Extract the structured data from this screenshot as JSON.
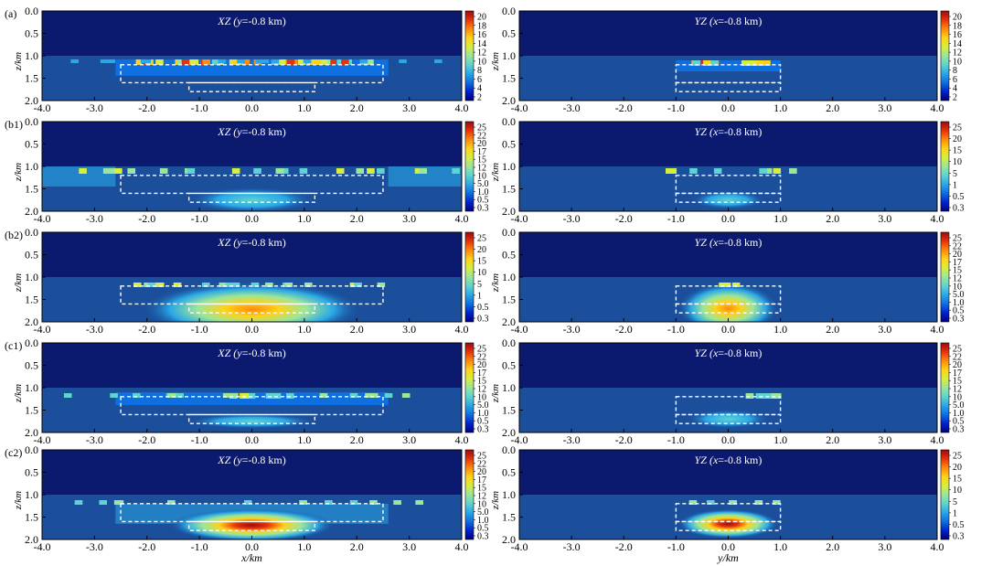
{
  "figure": {
    "x_axis_label_left": "x/km",
    "x_axis_label_right": "y/km",
    "z_axis_label": "z/km",
    "colors": {
      "background_upper": "#0b1a6e",
      "background_lower": "#1b4f9c",
      "outline": "#ffffff",
      "colormap": [
        "#00007f",
        "#0022cc",
        "#0d6fe0",
        "#2aa7e6",
        "#5ed3cf",
        "#9be69a",
        "#d7ee3d",
        "#fed319",
        "#ff8a0c",
        "#e8320b",
        "#9b0a12"
      ]
    }
  },
  "chart_data": [
    {
      "type": "heatmap",
      "panel": "(a)",
      "title": "XZ (y=-0.8 km)",
      "column": "xz",
      "xlabel": "x/km",
      "ylabel": "z/km",
      "xlim": [
        -4.0,
        4.0
      ],
      "zlim": [
        0.0,
        2.0
      ],
      "ground_z": 1.0,
      "xticks": [
        "-4.0",
        "-3.0",
        "-2.0",
        "-1.0",
        "0.0",
        "1.0",
        "2.0",
        "3.0",
        "4.0"
      ],
      "zticks": [
        "0.0",
        "0.5",
        "1.0",
        "1.5",
        "2.0"
      ],
      "colorbar": [
        "20",
        "18",
        "16",
        "14",
        "12",
        "10",
        "8",
        "6",
        "4",
        "2"
      ],
      "outlines": [
        [
          -2.5,
          2.5,
          1.2,
          1.6
        ],
        [
          -1.2,
          1.2,
          1.6,
          1.8
        ]
      ]
    },
    {
      "type": "heatmap",
      "panel": "",
      "title": "YZ (x=-0.8 km)",
      "column": "yz",
      "xlabel": "y/km",
      "ylabel": "z/km",
      "xlim": [
        -4.0,
        4.0
      ],
      "zlim": [
        0.0,
        2.0
      ],
      "ground_z": 1.0,
      "xticks": [
        "-4.0",
        "-3.0",
        "-2.0",
        "-1.0",
        "0.0",
        "1.0",
        "2.0",
        "3.0",
        "4.0"
      ],
      "zticks": [
        "0.0",
        "0.5",
        "1.0",
        "1.5",
        "2.0"
      ],
      "colorbar": [
        "20",
        "18",
        "16",
        "14",
        "12",
        "10",
        "8",
        "6",
        "4",
        "2"
      ],
      "outlines": [
        [
          -1.0,
          1.0,
          1.2,
          1.6
        ],
        [
          -1.0,
          1.0,
          1.6,
          1.8
        ]
      ]
    },
    {
      "type": "heatmap",
      "panel": "(b1)",
      "title": "XZ (y=-0.8 km)",
      "column": "xz",
      "xlabel": "x/km",
      "ylabel": "z/km",
      "xlim": [
        -4.0,
        4.0
      ],
      "zlim": [
        0.0,
        2.0
      ],
      "ground_z": 1.0,
      "xticks": [
        "-4.0",
        "-3.0",
        "-2.0",
        "-1.0",
        "0.0",
        "1.0",
        "2.0",
        "3.0",
        "4.0"
      ],
      "zticks": [
        "0.0",
        "0.5",
        "1.0",
        "1.5",
        "2.0"
      ],
      "colorbar": [
        "25",
        "22",
        "20",
        "17",
        "15",
        "12",
        "10",
        "5.0",
        "1.0",
        "0.5",
        "0.3"
      ],
      "outlines": [
        [
          -2.5,
          2.5,
          1.2,
          1.6
        ],
        [
          -1.2,
          1.2,
          1.6,
          1.8
        ]
      ]
    },
    {
      "type": "heatmap",
      "panel": "",
      "title": "YZ (x=-0.8 km)",
      "column": "yz",
      "xlabel": "y/km",
      "ylabel": "z/km",
      "xlim": [
        -4.0,
        4.0
      ],
      "zlim": [
        0.0,
        2.0
      ],
      "ground_z": 1.0,
      "xticks": [
        "-4.0",
        "-3.0",
        "-2.0",
        "-1.0",
        "0.0",
        "1.0",
        "2.0",
        "3.0",
        "4.0"
      ],
      "zticks": [
        "0.0",
        "0.5",
        "1.0",
        "1.5",
        "2.0"
      ],
      "colorbar": [
        "25",
        "20",
        "15",
        "10",
        "5",
        "1",
        "0.5",
        "0.3"
      ],
      "outlines": [
        [
          -1.0,
          1.0,
          1.2,
          1.6
        ],
        [
          -1.0,
          1.0,
          1.6,
          1.8
        ]
      ]
    },
    {
      "type": "heatmap",
      "panel": "(b2)",
      "title": "XZ (y=-0.8 km)",
      "column": "xz",
      "xlabel": "x/km",
      "ylabel": "z/km",
      "xlim": [
        -4.0,
        4.0
      ],
      "zlim": [
        0.0,
        2.0
      ],
      "ground_z": 1.0,
      "xticks": [
        "-4.0",
        "-3.0",
        "-2.0",
        "-1.0",
        "0.0",
        "1.0",
        "2.0",
        "3.0",
        "4.0"
      ],
      "zticks": [
        "0.0",
        "0.5",
        "1.0",
        "1.5",
        "2.0"
      ],
      "colorbar": [
        "25",
        "20",
        "15",
        "10",
        "5",
        "1",
        "0.5",
        "0.3"
      ],
      "outlines": [
        [
          -2.5,
          2.5,
          1.2,
          1.6
        ],
        [
          -1.2,
          1.2,
          1.6,
          1.8
        ]
      ]
    },
    {
      "type": "heatmap",
      "panel": "",
      "title": "YZ (x=-0.8 km)",
      "column": "yz",
      "xlabel": "y/km",
      "ylabel": "z/km",
      "xlim": [
        -4.0,
        4.0
      ],
      "zlim": [
        0.0,
        2.0
      ],
      "ground_z": 1.0,
      "xticks": [
        "-4.0",
        "-3.0",
        "-2.0",
        "-1.0",
        "0.0",
        "1.0",
        "2.0",
        "3.0",
        "4.0"
      ],
      "zticks": [
        "0.0",
        "0.5",
        "1.0",
        "1.5",
        "2.0"
      ],
      "colorbar": [
        "25",
        "22",
        "20",
        "17",
        "15",
        "12",
        "10",
        "5.0",
        "1.0",
        "0.5",
        "0.3"
      ],
      "outlines": [
        [
          -1.0,
          1.0,
          1.2,
          1.6
        ],
        [
          -1.0,
          1.0,
          1.6,
          1.8
        ]
      ]
    },
    {
      "type": "heatmap",
      "panel": "(c1)",
      "title": "XZ (y=-0.8 km)",
      "column": "xz",
      "xlabel": "x/km",
      "ylabel": "z/km",
      "xlim": [
        -4.0,
        4.0
      ],
      "zlim": [
        0.0,
        2.0
      ],
      "ground_z": 1.0,
      "xticks": [
        "-4.0",
        "-3.0",
        "-2.0",
        "-1.0",
        "0.0",
        "1.0",
        "2.0",
        "3.0",
        "4.0"
      ],
      "zticks": [
        "0.0",
        "0.5",
        "1.0",
        "1.5",
        "2.0"
      ],
      "colorbar": [
        "25",
        "22",
        "20",
        "17",
        "15",
        "12",
        "10",
        "5.0",
        "1.0",
        "0.5",
        "0.3"
      ],
      "outlines": [
        [
          -2.5,
          2.5,
          1.2,
          1.6
        ],
        [
          -1.2,
          1.2,
          1.6,
          1.8
        ]
      ]
    },
    {
      "type": "heatmap",
      "panel": "",
      "title": "YZ (x=-0.8 km)",
      "column": "yz",
      "xlabel": "y/km",
      "ylabel": "z/km",
      "xlim": [
        -4.0,
        4.0
      ],
      "zlim": [
        0.0,
        2.0
      ],
      "ground_z": 1.0,
      "xticks": [
        "-4.0",
        "-3.0",
        "-2.0",
        "-1.0",
        "0.0",
        "1.0",
        "2.0",
        "3.0",
        "4.0"
      ],
      "zticks": [
        "0.0",
        "0.5",
        "1.0",
        "1.5",
        "2.0"
      ],
      "colorbar": [
        "25",
        "22",
        "20",
        "17",
        "15",
        "12",
        "10",
        "5.0",
        "1.0",
        "0.5",
        "0.3"
      ],
      "outlines": [
        [
          -1.0,
          1.0,
          1.2,
          1.6
        ],
        [
          -1.0,
          1.0,
          1.6,
          1.8
        ]
      ]
    },
    {
      "type": "heatmap",
      "panel": "(c2)",
      "title": "XZ (y=-0.8 km)",
      "column": "xz",
      "xlabel": "x/km",
      "ylabel": "z/km",
      "xlim": [
        -4.0,
        4.0
      ],
      "zlim": [
        0.0,
        2.0
      ],
      "ground_z": 1.0,
      "xticks": [
        "-4.0",
        "-3.0",
        "-2.0",
        "-1.0",
        "0.0",
        "1.0",
        "2.0",
        "3.0",
        "4.0"
      ],
      "zticks": [
        "0.0",
        "0.5",
        "1.0",
        "1.5",
        "2.0"
      ],
      "colorbar": [
        "25",
        "22",
        "20",
        "17",
        "15",
        "12",
        "10",
        "5.0",
        "1.0",
        "0.5",
        "0.3"
      ],
      "outlines": [
        [
          -2.5,
          2.5,
          1.2,
          1.6
        ],
        [
          -1.2,
          1.2,
          1.6,
          1.8
        ]
      ]
    },
    {
      "type": "heatmap",
      "panel": "",
      "title": "YZ (x=-0.8 km)",
      "column": "yz",
      "xlabel": "y/km",
      "ylabel": "z/km",
      "xlim": [
        -4.0,
        4.0
      ],
      "zlim": [
        0.0,
        2.0
      ],
      "ground_z": 1.0,
      "xticks": [
        "-4.0",
        "-3.0",
        "-2.0",
        "-1.0",
        "0.0",
        "1.0",
        "2.0",
        "3.0",
        "4.0"
      ],
      "zticks": [
        "0.0",
        "0.5",
        "1.0",
        "1.5",
        "2.0"
      ],
      "colorbar": [
        "25",
        "20",
        "15",
        "10",
        "5",
        "1",
        "0.5",
        "0.3"
      ],
      "outlines": [
        [
          -1.0,
          1.0,
          1.2,
          1.6
        ],
        [
          -1.0,
          1.0,
          1.6,
          1.8
        ]
      ]
    }
  ]
}
